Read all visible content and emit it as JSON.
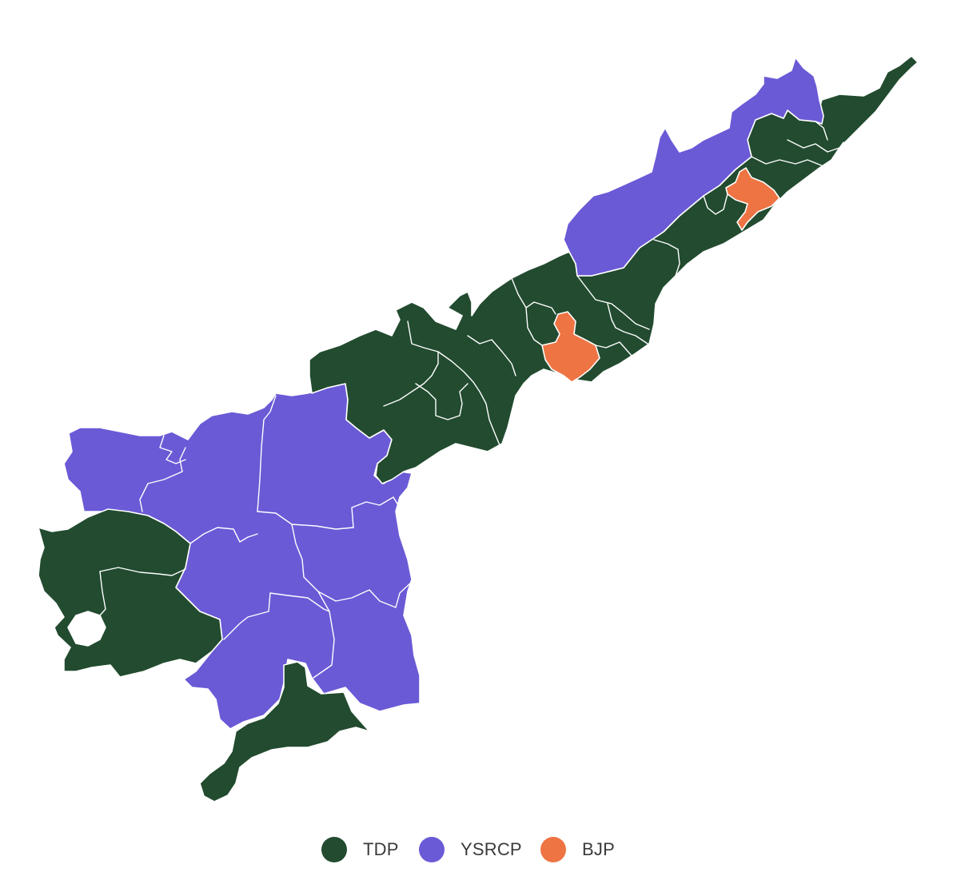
{
  "legend": {
    "items": [
      {
        "label": "TDP",
        "color": "#224b2f"
      },
      {
        "label": "YSRCP",
        "color": "#6a5ad6"
      },
      {
        "label": "BJP",
        "color": "#ee7444"
      }
    ]
  }
}
